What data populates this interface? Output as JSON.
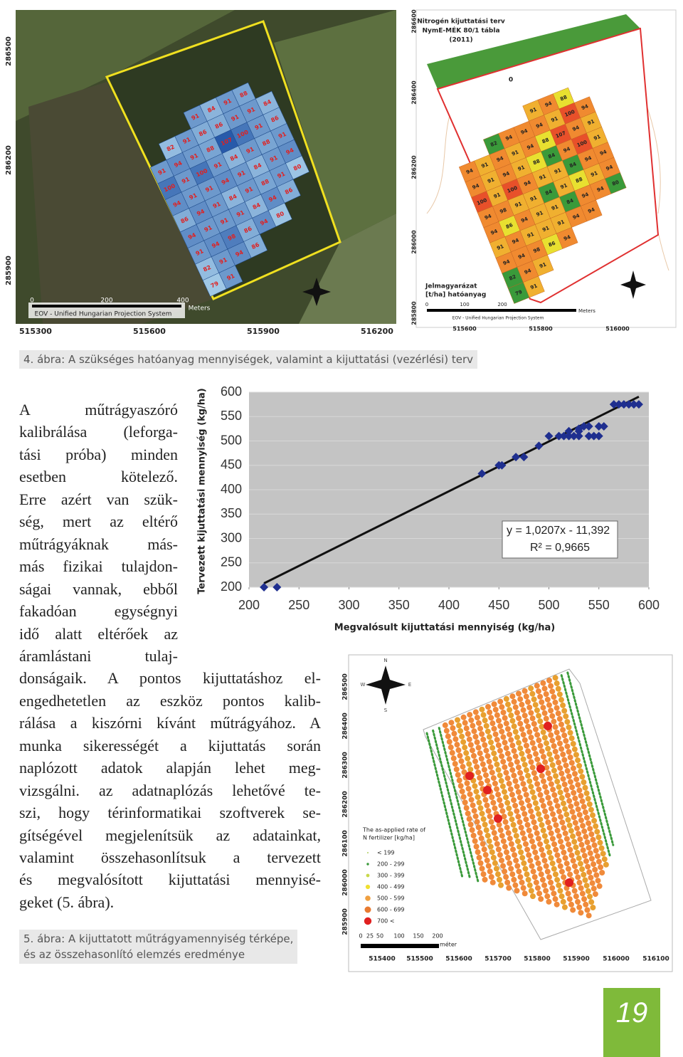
{
  "figure4": {
    "left_map": {
      "yticks": [
        "286500",
        "286200",
        "285900"
      ],
      "xticks": [
        "515300",
        "515600",
        "515900",
        "516200"
      ],
      "scale": [
        "0",
        "200",
        "400",
        "Meters"
      ],
      "projection": "EOV - Unified Hungarian Projection System",
      "cells": [
        [
          null,
          null,
          null,
          91,
          84,
          91,
          88,
          null
        ],
        [
          null,
          82,
          91,
          86,
          86,
          91,
          91,
          84
        ],
        [
          91,
          94,
          91,
          88,
          107,
          100,
          91,
          86
        ],
        [
          100,
          91,
          100,
          91,
          84,
          91,
          88,
          91
        ],
        [
          94,
          91,
          91,
          94,
          91,
          84,
          91,
          94
        ],
        [
          86,
          94,
          91,
          84,
          91,
          88,
          91,
          80
        ],
        [
          94,
          91,
          91,
          91,
          84,
          94,
          86,
          null
        ],
        [
          91,
          94,
          98,
          86,
          94,
          80,
          null,
          null
        ],
        [
          82,
          91,
          94,
          86,
          null,
          null,
          null,
          null
        ],
        [
          79,
          91,
          null,
          null,
          null,
          null,
          null,
          null
        ]
      ]
    },
    "right_map": {
      "title": [
        "Nitrogén kijuttatási terv",
        "NymE-MÉK 80/1 tábla",
        "(2011)"
      ],
      "legend_title": "Jelmagyarázat",
      "legend_unit": "[t/ha] hatóanyag",
      "zero_label": "0",
      "yticks": [
        "286600",
        "286400",
        "286200",
        "286000",
        "285800"
      ],
      "xticks": [
        "515600",
        "515800",
        "516000"
      ],
      "scale": [
        "0",
        "100",
        "200",
        "Meters"
      ],
      "projection": "EOV - Unified Hungarian Projection System",
      "cells": [
        [
          null,
          null,
          null,
          null,
          null,
          91,
          94,
          88,
          null
        ],
        [
          null,
          null,
          82,
          94,
          94,
          94,
          91,
          100,
          94
        ],
        [
          94,
          91,
          94,
          91,
          94,
          88,
          107,
          94,
          91
        ],
        [
          94,
          91,
          94,
          91,
          88,
          84,
          94,
          100,
          91
        ],
        [
          100,
          91,
          100,
          94,
          91,
          91,
          84,
          94,
          94
        ],
        [
          94,
          98,
          91,
          91,
          84,
          91,
          88,
          91,
          94
        ],
        [
          94,
          86,
          94,
          91,
          91,
          84,
          94,
          94,
          80
        ],
        [
          91,
          94,
          91,
          91,
          91,
          94,
          94,
          null,
          null
        ],
        [
          94,
          94,
          98,
          86,
          94,
          null,
          null,
          null,
          null
        ],
        [
          82,
          94,
          91,
          null,
          null,
          null,
          null,
          null,
          null
        ],
        [
          79,
          91,
          null,
          null,
          null,
          null,
          null,
          null,
          null
        ]
      ]
    },
    "caption": "4. ábra: A szükséges hatóanyag mennyiségek, valamint a kijuttatási (vezérlési) terv"
  },
  "chart_data": {
    "type": "scatter",
    "x_label": "Megvalósult kijuttatási mennyiség (kg/ha)",
    "y_label": "Tervezett kijuttatási mennyiség (kg/ha)",
    "x": [
      215,
      228,
      433,
      450,
      453,
      467,
      475,
      490,
      500,
      510,
      515,
      520,
      525,
      530,
      540,
      545,
      520,
      530,
      535,
      540,
      550,
      555,
      530,
      550,
      565,
      570,
      575,
      580,
      585,
      590
    ],
    "values": [
      200,
      200,
      433,
      450,
      450,
      467,
      467,
      490,
      510,
      510,
      510,
      510,
      510,
      510,
      510,
      510,
      520,
      525,
      530,
      530,
      530,
      530,
      520,
      510,
      575,
      575,
      575,
      575,
      575,
      575
    ],
    "color": "#1f2f8f",
    "trendline": {
      "label": "y = 1,0207x - 11,392",
      "slope": 1.0207,
      "intercept": -11.392,
      "r2_label": "R² = 0,9665"
    },
    "xlim": [
      200,
      600
    ],
    "ylim": [
      200,
      600
    ],
    "xticks": [
      200,
      250,
      300,
      350,
      400,
      450,
      500,
      550,
      600
    ],
    "yticks": [
      200,
      250,
      300,
      350,
      400,
      450,
      500,
      550,
      600
    ],
    "grid": true
  },
  "body": {
    "lines": [
      "A műtrágyaszóró",
      "kalibrálása (leforga-",
      "tási próba) minden",
      "esetben kötelező.",
      "Erre azért van szük-",
      "ség, mert az eltérő",
      "műtrágyáknak más-",
      "más fizikai tulajdon-",
      "ságai vannak, ebből",
      "fakadóan egységnyi",
      "idő alatt eltérőek az",
      "áramlástani tulaj-",
      "donságaik. A pontos kijuttatáshoz el-",
      "engedhetetlen az eszköz pontos kalib-",
      "rálása a kiszórni kívánt műtrágyához. A",
      "munka sikerességét a kijuttatás során",
      "naplózott adatok alapján lehet meg-",
      "vizsgálni. az adatnaplózás lehetővé te-",
      "szi, hogy térinformatikai szoftverek se-",
      "gítségével megjelenítsük az adatainkat,",
      "valamint összehasonlítsuk a tervezett",
      "és megvalósított kijuttatási mennyisé-",
      "geket (5. ábra)."
    ]
  },
  "figure5": {
    "map": {
      "compass": [
        "N",
        "E",
        "S",
        "W"
      ],
      "yticks": [
        "286500",
        "286400",
        "286300",
        "286200",
        "286100",
        "286000",
        "285900"
      ],
      "xticks": [
        "515400",
        "515500",
        "515600",
        "515700",
        "515800",
        "515900",
        "516000",
        "516100"
      ],
      "scale": [
        "0",
        "25",
        "50",
        "100",
        "150",
        "200"
      ],
      "scale_unit": "méter",
      "legend_title": [
        "The as-applied rate of",
        "N fertilizer [kg/ha]"
      ],
      "legend": [
        "< 199",
        "200 - 299",
        "300 - 399",
        "400 - 499",
        "500 - 599",
        "600 - 699",
        "700 <"
      ],
      "legend_colors": [
        "#b0d060",
        "#3a9a3a",
        "#c8d84a",
        "#f0e030",
        "#f0a040",
        "#e87a30",
        "#e02020"
      ]
    },
    "caption": [
      "5. ábra: A kijuttatott műtrágyamennyiség térképe,",
      "és az összehasonlító elemzés eredménye"
    ]
  },
  "page_number": "19"
}
